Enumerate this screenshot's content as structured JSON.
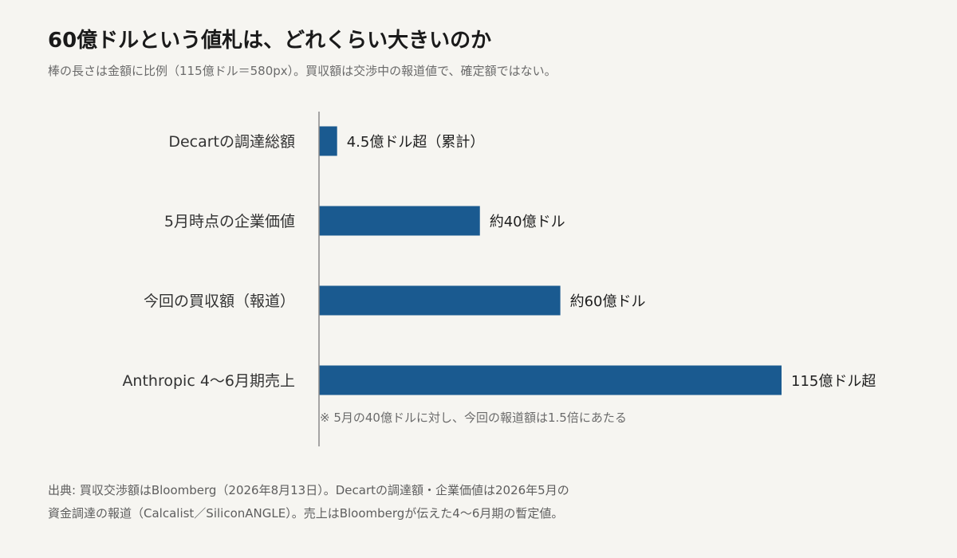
{
  "title": "60億ドルという値札は、どれくらい大きいのか",
  "subtitle": "棒の長さは金額に比例（115億ドル＝580px）。買収額は交渉中の報道値で、確定額ではない。",
  "chart_data": {
    "type": "bar",
    "orientation": "horizontal",
    "unit": "億ドル",
    "categories": [
      "Decartの調達総額",
      "5月時点の企業価値",
      "今回の買収額（報道）",
      "Anthropic 4〜6月期売上"
    ],
    "values": [
      4.5,
      40,
      60,
      115
    ],
    "value_labels": [
      "4.5億ドル超（累計）",
      "約40億ドル",
      "約60億ドル",
      "115億ドル超"
    ],
    "xlim": [
      0,
      115
    ],
    "bar_color": "#1a5a90",
    "annotation": "※ 5月の40億ドルに対し、今回の報道額は1.5倍にあたる",
    "grid": false,
    "legend": "none"
  },
  "source_lines": [
    "出典: 買収交渉額はBloomberg（2026年8月13日）。Decartの調達額・企業価値は2026年5月の",
    "資金調達の報道（Calcalist／SiliconANGLE）。売上はBloombergが伝えた4〜6月期の暫定値。"
  ]
}
